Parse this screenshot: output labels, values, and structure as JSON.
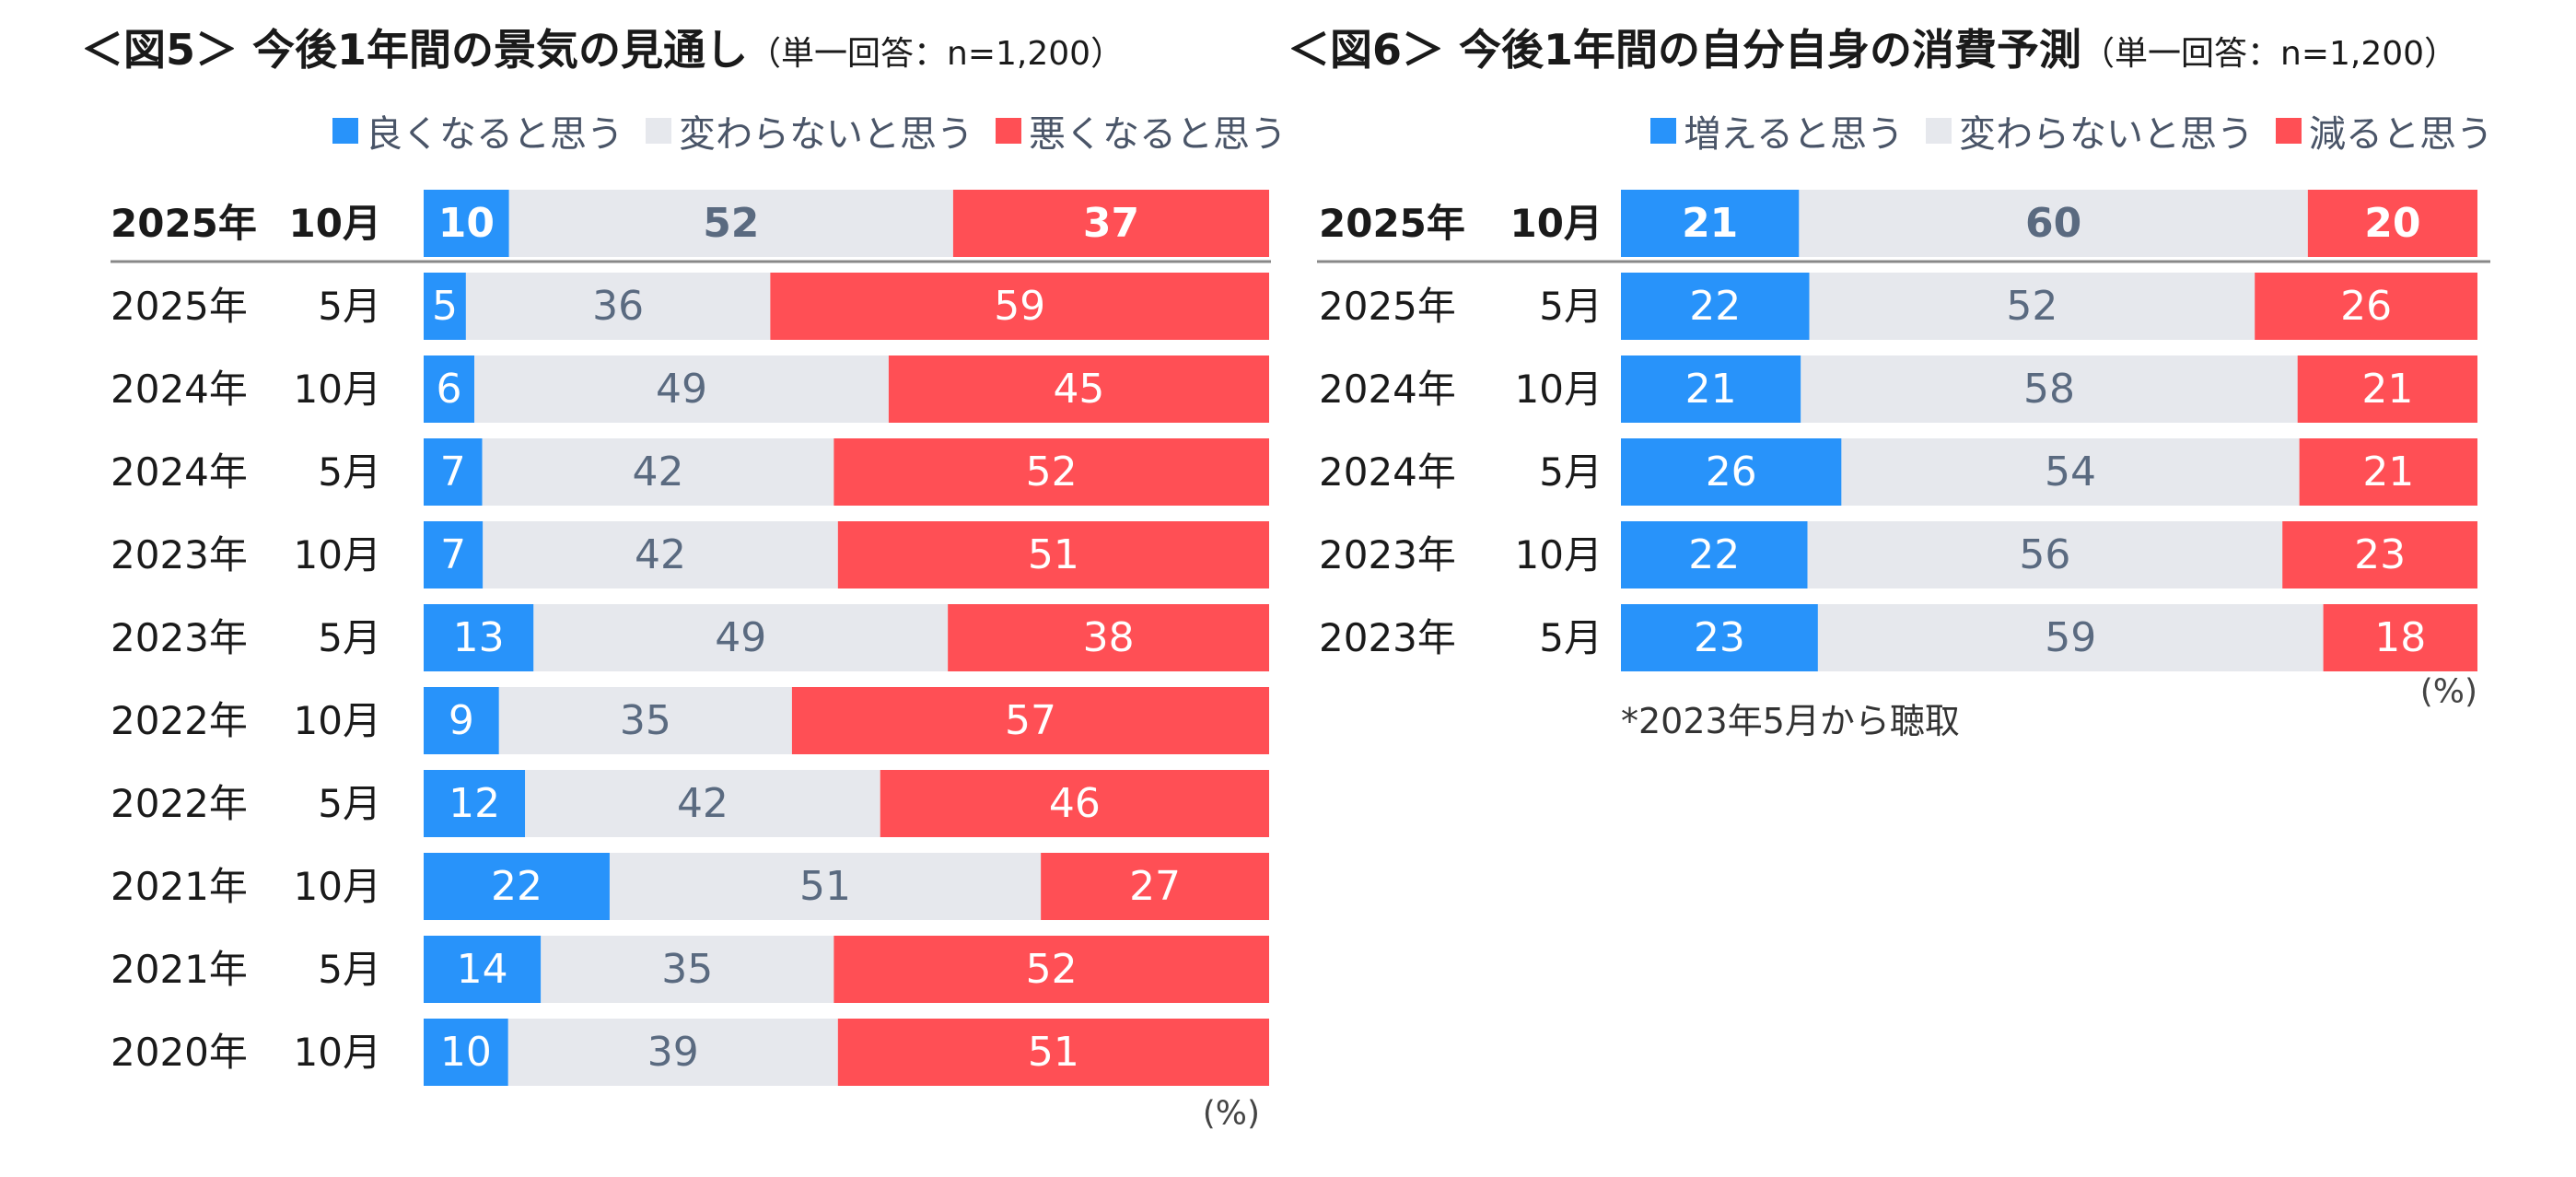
{
  "chart_data": [
    {
      "type": "bar",
      "orientation": "horizontal",
      "stacked": true,
      "title": "＜図5＞ 今後1年間の景気の見通し",
      "subtitle": "（単一回答：n=1,200）",
      "unit_label": "(%)",
      "categories": [
        {
          "year": "2025年",
          "month": "10月"
        },
        {
          "year": "2025年",
          "month": "5月"
        },
        {
          "year": "2024年",
          "month": "10月"
        },
        {
          "year": "2024年",
          "month": "5月"
        },
        {
          "year": "2023年",
          "month": "10月"
        },
        {
          "year": "2023年",
          "month": "5月"
        },
        {
          "year": "2022年",
          "month": "10月"
        },
        {
          "year": "2022年",
          "month": "5月"
        },
        {
          "year": "2021年",
          "month": "10月"
        },
        {
          "year": "2021年",
          "month": "5月"
        },
        {
          "year": "2020年",
          "month": "10月"
        }
      ],
      "series": [
        {
          "name": "良くなると思う",
          "color": "#2893fa",
          "values": [
            10,
            5,
            6,
            7,
            7,
            13,
            9,
            12,
            22,
            14,
            10
          ]
        },
        {
          "name": "変わらないと思う",
          "color": "#e6e8ed",
          "values": [
            52,
            36,
            49,
            42,
            42,
            49,
            35,
            42,
            51,
            35,
            39
          ]
        },
        {
          "name": "悪くなると思う",
          "color": "#ff4f55",
          "values": [
            37,
            59,
            45,
            52,
            51,
            38,
            57,
            46,
            27,
            52,
            51
          ]
        }
      ],
      "highlight_first_row": true
    },
    {
      "type": "bar",
      "orientation": "horizontal",
      "stacked": true,
      "title": "＜図6＞ 今後1年間の自分自身の消費予測",
      "subtitle": "（単一回答：n=1,200）",
      "unit_label": "(%)",
      "footnote": "*2023年5月から聴取",
      "categories": [
        {
          "year": "2025年",
          "month": "10月"
        },
        {
          "year": "2025年",
          "month": "5月"
        },
        {
          "year": "2024年",
          "month": "10月"
        },
        {
          "year": "2024年",
          "month": "5月"
        },
        {
          "year": "2023年",
          "month": "10月"
        },
        {
          "year": "2023年",
          "month": "5月"
        }
      ],
      "series": [
        {
          "name": "増えると思う",
          "color": "#2893fa",
          "values": [
            21,
            22,
            21,
            26,
            22,
            23
          ]
        },
        {
          "name": "変わらないと思う",
          "color": "#e6e8ed",
          "values": [
            60,
            52,
            58,
            54,
            56,
            59
          ]
        },
        {
          "name": "減ると思う",
          "color": "#ff4f55",
          "values": [
            20,
            26,
            21,
            21,
            23,
            18
          ]
        }
      ],
      "highlight_first_row": true
    }
  ]
}
